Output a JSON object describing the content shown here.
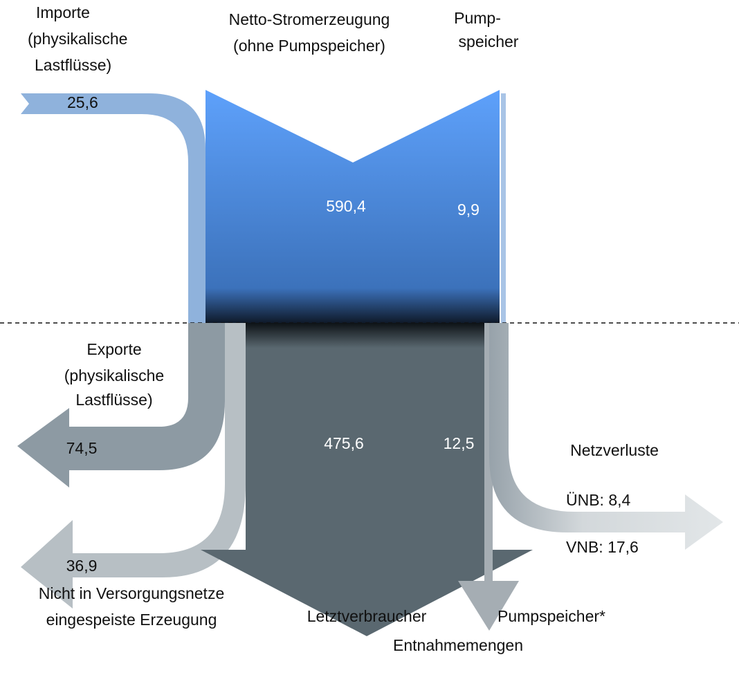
{
  "header": {
    "generation": [
      "Netto-Stromerzeugung",
      "(ohne Pumpspeicher)"
    ],
    "pumped_in": [
      "Pump-",
      "speicher"
    ]
  },
  "inflows": {
    "imports": {
      "label": [
        "Importe",
        "(physikalische",
        "Lastflüsse)"
      ],
      "value": "25,6"
    },
    "generation": {
      "value": "590,4"
    },
    "pumped_storage": {
      "value": "9,9"
    }
  },
  "outflows": {
    "exports": {
      "label": [
        "Exporte",
        "(physikalische",
        "Lastflüsse)"
      ],
      "value": "74,5"
    },
    "not_fed_in": {
      "label": [
        "Nicht in Versorgungsnetze",
        "eingespeiste Erzeugung"
      ],
      "value": "36,9"
    },
    "final_consumers": {
      "label": [
        "Letztverbraucher",
        "Entnahmemengen"
      ],
      "value": "475,6"
    },
    "pumped_storage": {
      "label": "Pumpspeicher*",
      "value": "12,5"
    },
    "grid_losses": {
      "label": "Netzverluste",
      "tso": "ÜNB: 8,4",
      "dso": "VNB: 17,6"
    }
  }
}
